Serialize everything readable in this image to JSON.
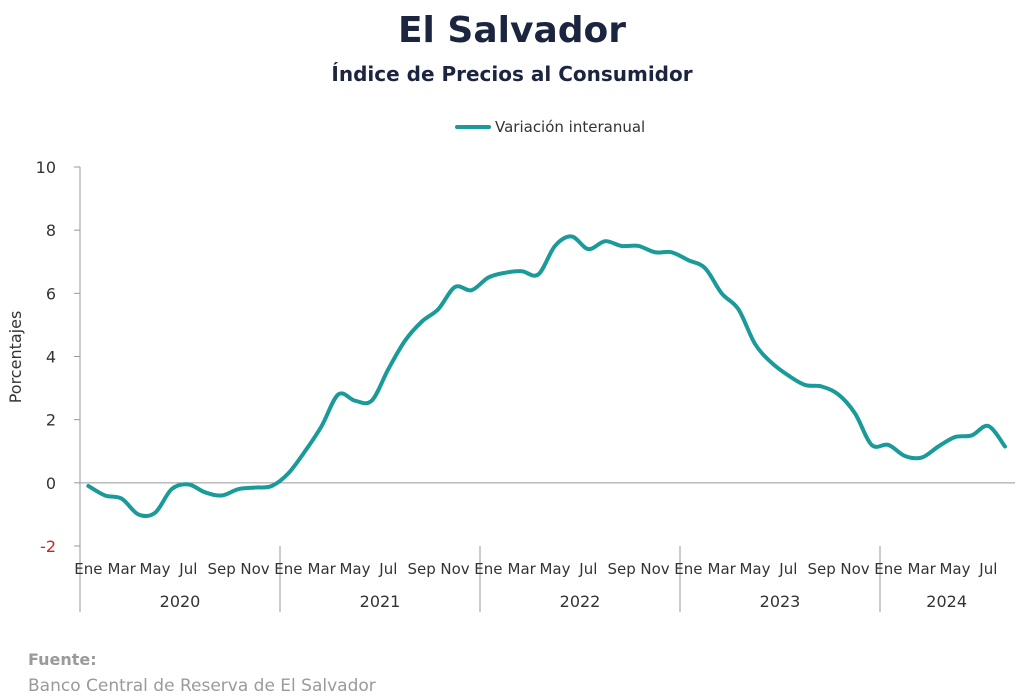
{
  "title": "El Salvador",
  "subtitle": "Índice de Precios al Consumidor",
  "legend_label": "Variación interanual",
  "source": {
    "label": "Fuente:",
    "text": "Banco Central de Reserva de El Salvador"
  },
  "colors": {
    "line": "#1a9a98",
    "axis": "#999999",
    "negative_tick": "#cc2222",
    "text": "#333333"
  },
  "chart_data": {
    "type": "line",
    "title": "Índice de Precios al Consumidor",
    "ylabel": "Porcentajes",
    "ylim": [
      -2,
      10
    ],
    "yticks": [
      -2,
      0,
      2,
      4,
      6,
      8,
      10
    ],
    "grid": false,
    "legend_position": "top-center",
    "month_tick_labels": [
      "Ene",
      "Mar",
      "May",
      "Jul",
      "Sep",
      "Nov"
    ],
    "years": [
      "2020",
      "2021",
      "2022",
      "2023",
      "2024"
    ],
    "x": [
      "2020-01",
      "2020-02",
      "2020-03",
      "2020-04",
      "2020-05",
      "2020-06",
      "2020-07",
      "2020-08",
      "2020-09",
      "2020-10",
      "2020-11",
      "2020-12",
      "2021-01",
      "2021-02",
      "2021-03",
      "2021-04",
      "2021-05",
      "2021-06",
      "2021-07",
      "2021-08",
      "2021-09",
      "2021-10",
      "2021-11",
      "2021-12",
      "2022-01",
      "2022-02",
      "2022-03",
      "2022-04",
      "2022-05",
      "2022-06",
      "2022-07",
      "2022-08",
      "2022-09",
      "2022-10",
      "2022-11",
      "2022-12",
      "2023-01",
      "2023-02",
      "2023-03",
      "2023-04",
      "2023-05",
      "2023-06",
      "2023-07",
      "2023-08",
      "2023-09",
      "2023-10",
      "2023-11",
      "2023-12",
      "2024-01",
      "2024-02",
      "2024-03",
      "2024-04",
      "2024-05",
      "2024-06",
      "2024-07",
      "2024-08"
    ],
    "series": [
      {
        "name": "Variación interanual",
        "values": [
          -0.1,
          -0.4,
          -0.5,
          -1.0,
          -0.95,
          -0.2,
          -0.05,
          -0.3,
          -0.4,
          -0.2,
          -0.15,
          -0.1,
          0.3,
          1.0,
          1.8,
          2.8,
          2.6,
          2.6,
          3.6,
          4.5,
          5.1,
          5.5,
          6.2,
          6.1,
          6.5,
          6.65,
          6.7,
          6.6,
          7.5,
          7.8,
          7.4,
          7.65,
          7.5,
          7.5,
          7.3,
          7.3,
          7.05,
          6.8,
          6.0,
          5.5,
          4.4,
          3.8,
          3.4,
          3.1,
          3.05,
          2.8,
          2.2,
          1.2,
          1.2,
          0.85,
          0.8,
          1.15,
          1.45,
          1.5,
          1.8,
          1.15
        ]
      }
    ]
  }
}
